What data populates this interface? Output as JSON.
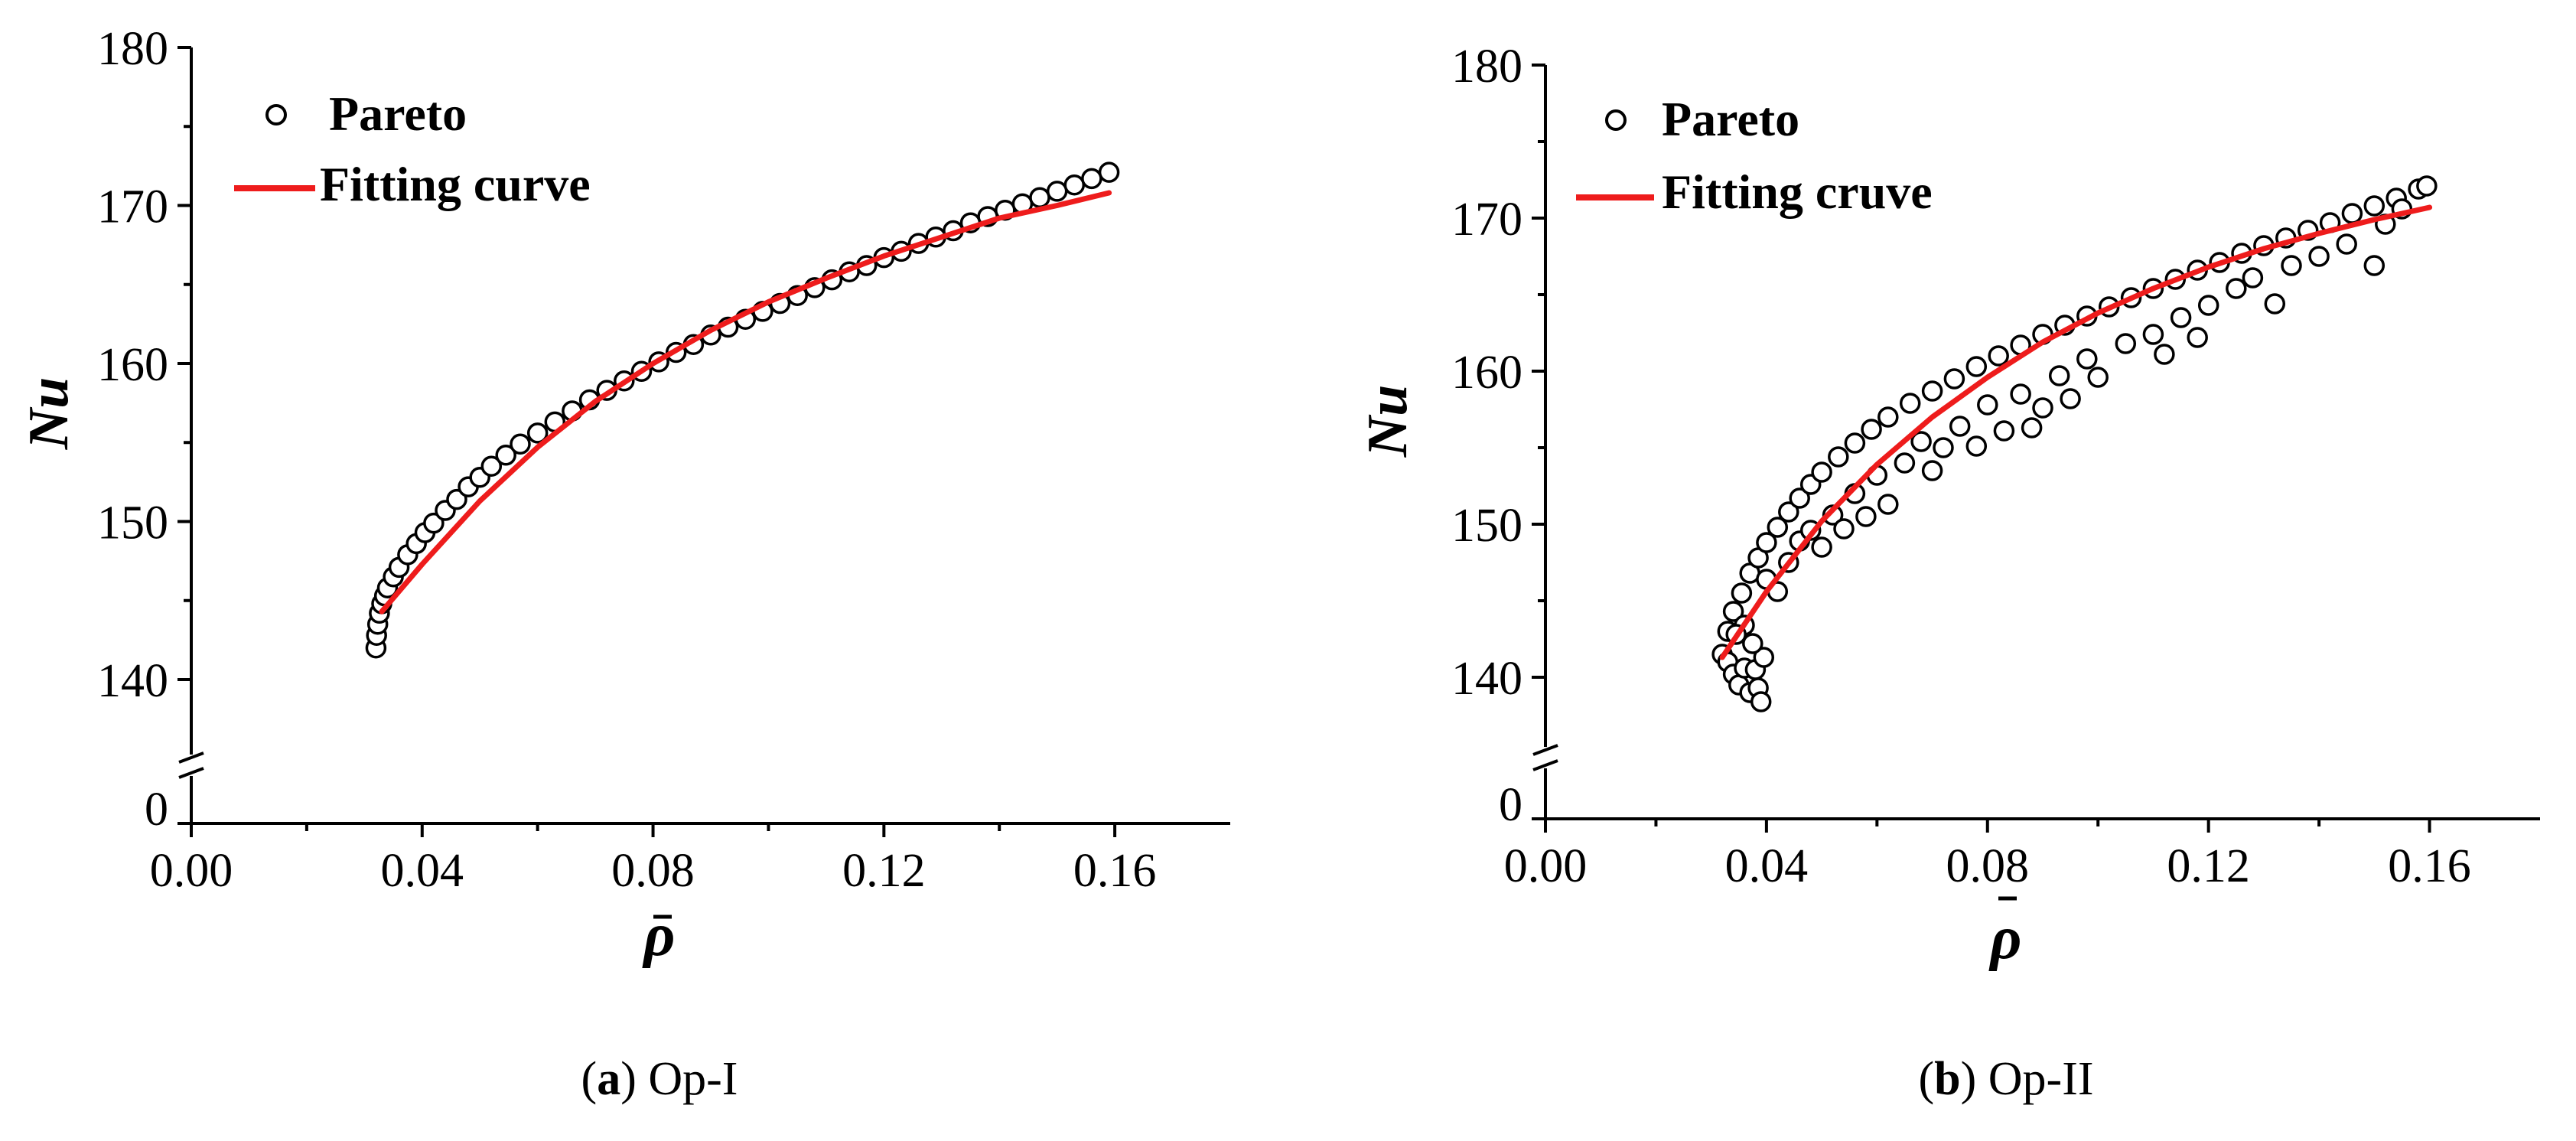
{
  "chart_data": [
    {
      "type": "scatter",
      "caption_letter": "a",
      "caption_text": "Op-I",
      "xlabel": "ρ",
      "ylabel": "Nu",
      "xlim": [
        0.0,
        0.18
      ],
      "ylim_break": [
        0,
        135,
        180
      ],
      "x_ticks": [
        "0.00",
        "0.04",
        "0.08",
        "0.12",
        "0.16"
      ],
      "y_ticks": [
        "140",
        "150",
        "160",
        "170",
        "180"
      ],
      "y_zero_tick": "0",
      "legend": {
        "scatter_label": "Pareto",
        "line_label": "Fitting curve"
      },
      "series": [
        {
          "name": "Pareto",
          "points": [
            [
              0.032,
              142.0
            ],
            [
              0.0321,
              142.8
            ],
            [
              0.0323,
              143.5
            ],
            [
              0.0326,
              144.2
            ],
            [
              0.033,
              144.8
            ],
            [
              0.0335,
              145.3
            ],
            [
              0.034,
              145.8
            ],
            [
              0.035,
              146.5
            ],
            [
              0.036,
              147.1
            ],
            [
              0.0375,
              147.9
            ],
            [
              0.039,
              148.6
            ],
            [
              0.0405,
              149.3
            ],
            [
              0.042,
              149.9
            ],
            [
              0.044,
              150.7
            ],
            [
              0.046,
              151.4
            ],
            [
              0.048,
              152.2
            ],
            [
              0.05,
              152.8
            ],
            [
              0.052,
              153.5
            ],
            [
              0.0545,
              154.2
            ],
            [
              0.057,
              154.9
            ],
            [
              0.06,
              155.6
            ],
            [
              0.063,
              156.3
            ],
            [
              0.066,
              157.0
            ],
            [
              0.069,
              157.7
            ],
            [
              0.072,
              158.3
            ],
            [
              0.075,
              158.9
            ],
            [
              0.078,
              159.5
            ],
            [
              0.081,
              160.1
            ],
            [
              0.084,
              160.7
            ],
            [
              0.087,
              161.2
            ],
            [
              0.09,
              161.8
            ],
            [
              0.093,
              162.3
            ],
            [
              0.096,
              162.8
            ],
            [
              0.099,
              163.3
            ],
            [
              0.102,
              163.8
            ],
            [
              0.105,
              164.3
            ],
            [
              0.108,
              164.8
            ],
            [
              0.111,
              165.3
            ],
            [
              0.114,
              165.8
            ],
            [
              0.117,
              166.2
            ],
            [
              0.12,
              166.7
            ],
            [
              0.123,
              167.1
            ],
            [
              0.126,
              167.6
            ],
            [
              0.129,
              168.0
            ],
            [
              0.132,
              168.4
            ],
            [
              0.135,
              168.9
            ],
            [
              0.138,
              169.3
            ],
            [
              0.141,
              169.7
            ],
            [
              0.144,
              170.1
            ],
            [
              0.147,
              170.5
            ],
            [
              0.15,
              170.9
            ],
            [
              0.153,
              171.3
            ],
            [
              0.156,
              171.7
            ],
            [
              0.159,
              172.1
            ]
          ]
        },
        {
          "name": "Fitting curve",
          "color": "#ee1c1c",
          "points": [
            [
              0.033,
              144.3
            ],
            [
              0.04,
              147.3
            ],
            [
              0.05,
              151.3
            ],
            [
              0.06,
              154.7
            ],
            [
              0.07,
              157.6
            ],
            [
              0.08,
              160.0
            ],
            [
              0.09,
              162.1
            ],
            [
              0.1,
              163.9
            ],
            [
              0.11,
              165.4
            ],
            [
              0.12,
              166.8
            ],
            [
              0.13,
              168.0
            ],
            [
              0.14,
              169.2
            ],
            [
              0.15,
              170.0
            ],
            [
              0.159,
              170.8
            ]
          ]
        }
      ]
    },
    {
      "type": "scatter",
      "caption_letter": "b",
      "caption_text": "Op-II",
      "xlabel": "ρ",
      "ylabel": "Nu",
      "xlim": [
        0.0,
        0.18
      ],
      "ylim_break": [
        0,
        135,
        180
      ],
      "x_ticks": [
        "0.00",
        "0.04",
        "0.08",
        "0.12",
        "0.16"
      ],
      "y_ticks": [
        "140",
        "150",
        "160",
        "170",
        "180"
      ],
      "y_zero_tick": "0",
      "legend": {
        "scatter_label": "Pareto",
        "line_label": "Fitting cruve"
      },
      "series": [
        {
          "name": "Pareto",
          "points": [
            [
              0.032,
              141.5
            ],
            [
              0.033,
              143.0
            ],
            [
              0.034,
              144.3
            ],
            [
              0.0355,
              145.5
            ],
            [
              0.037,
              146.8
            ],
            [
              0.0385,
              147.8
            ],
            [
              0.04,
              148.8
            ],
            [
              0.042,
              149.8
            ],
            [
              0.044,
              150.8
            ],
            [
              0.046,
              151.7
            ],
            [
              0.048,
              152.6
            ],
            [
              0.05,
              153.4
            ],
            [
              0.053,
              154.4
            ],
            [
              0.056,
              155.3
            ],
            [
              0.059,
              156.2
            ],
            [
              0.062,
              157.0
            ],
            [
              0.066,
              157.9
            ],
            [
              0.07,
              158.7
            ],
            [
              0.074,
              159.5
            ],
            [
              0.078,
              160.3
            ],
            [
              0.082,
              161.0
            ],
            [
              0.086,
              161.7
            ],
            [
              0.09,
              162.4
            ],
            [
              0.094,
              163.0
            ],
            [
              0.098,
              163.6
            ],
            [
              0.102,
              164.2
            ],
            [
              0.106,
              164.8
            ],
            [
              0.11,
              165.4
            ],
            [
              0.114,
              166.0
            ],
            [
              0.118,
              166.6
            ],
            [
              0.122,
              167.1
            ],
            [
              0.126,
              167.7
            ],
            [
              0.13,
              168.2
            ],
            [
              0.134,
              168.7
            ],
            [
              0.138,
              169.2
            ],
            [
              0.142,
              169.7
            ],
            [
              0.146,
              170.3
            ],
            [
              0.15,
              170.8
            ],
            [
              0.154,
              171.3
            ],
            [
              0.158,
              171.9
            ],
            [
              0.1595,
              172.1
            ],
            [
              0.033,
              141.0
            ],
            [
              0.034,
              140.2
            ],
            [
              0.035,
              139.5
            ],
            [
              0.036,
              140.6
            ],
            [
              0.037,
              139.0
            ],
            [
              0.038,
              140.5
            ],
            [
              0.0385,
              139.3
            ],
            [
              0.039,
              138.4
            ],
            [
              0.0395,
              141.3
            ],
            [
              0.0375,
              142.2
            ],
            [
              0.036,
              143.4
            ],
            [
              0.0345,
              142.8
            ],
            [
              0.04,
              146.4
            ],
            [
              0.042,
              145.6
            ],
            [
              0.044,
              147.5
            ],
            [
              0.046,
              148.9
            ],
            [
              0.048,
              149.6
            ],
            [
              0.05,
              148.5
            ],
            [
              0.052,
              150.6
            ],
            [
              0.054,
              149.7
            ],
            [
              0.056,
              152.0
            ],
            [
              0.058,
              150.5
            ],
            [
              0.06,
              153.2
            ],
            [
              0.062,
              151.3
            ],
            [
              0.065,
              154.0
            ],
            [
              0.068,
              155.4
            ],
            [
              0.07,
              153.5
            ],
            [
              0.072,
              155.0
            ],
            [
              0.075,
              156.4
            ],
            [
              0.078,
              155.1
            ],
            [
              0.08,
              157.8
            ],
            [
              0.083,
              156.1
            ],
            [
              0.086,
              158.5
            ],
            [
              0.088,
              156.3
            ],
            [
              0.09,
              157.6
            ],
            [
              0.093,
              159.7
            ],
            [
              0.095,
              158.2
            ],
            [
              0.098,
              160.8
            ],
            [
              0.1,
              159.6
            ],
            [
              0.105,
              161.8
            ],
            [
              0.11,
              162.4
            ],
            [
              0.112,
              161.1
            ],
            [
              0.115,
              163.5
            ],
            [
              0.118,
              162.2
            ],
            [
              0.12,
              164.3
            ],
            [
              0.125,
              165.4
            ],
            [
              0.128,
              166.1
            ],
            [
              0.132,
              164.4
            ],
            [
              0.135,
              166.9
            ],
            [
              0.14,
              167.5
            ],
            [
              0.145,
              168.3
            ],
            [
              0.15,
              166.9
            ],
            [
              0.152,
              169.6
            ],
            [
              0.155,
              170.6
            ]
          ]
        },
        {
          "name": "Fitting cruve",
          "color": "#ee1c1c",
          "points": [
            [
              0.032,
              141.3
            ],
            [
              0.04,
              145.6
            ],
            [
              0.05,
              150.2
            ],
            [
              0.06,
              153.9
            ],
            [
              0.07,
              157.0
            ],
            [
              0.08,
              159.6
            ],
            [
              0.09,
              161.9
            ],
            [
              0.1,
              163.8
            ],
            [
              0.11,
              165.4
            ],
            [
              0.12,
              166.8
            ],
            [
              0.13,
              168.0
            ],
            [
              0.14,
              169.0
            ],
            [
              0.15,
              169.9
            ],
            [
              0.16,
              170.7
            ]
          ]
        }
      ]
    }
  ]
}
